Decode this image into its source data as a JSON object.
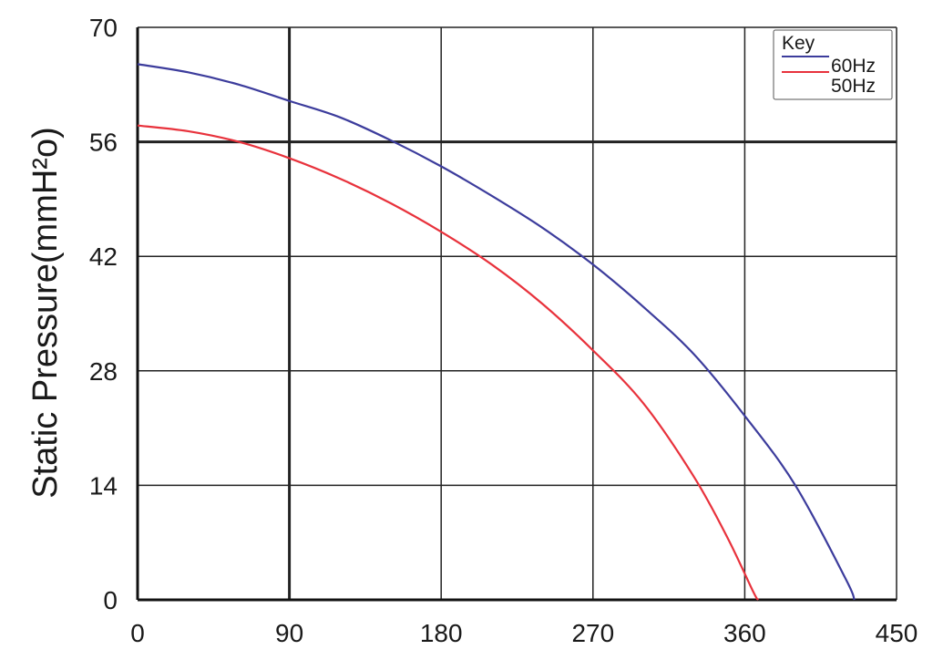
{
  "chart_data": {
    "type": "line",
    "xlabel": "",
    "ylabel": "Static Pressure(mmH²o)",
    "xlim": [
      0,
      450
    ],
    "ylim": [
      0,
      70
    ],
    "x_ticks": [
      "0",
      "90",
      "180",
      "270",
      "360",
      "450"
    ],
    "y_ticks": [
      "0",
      "14",
      "28",
      "42",
      "56",
      "70"
    ],
    "grid": true,
    "legend": {
      "title": "Key",
      "placement": "top-right"
    },
    "series": [
      {
        "name": "60Hz",
        "color": "#3c3c9c",
        "x": [
          0,
          30,
          60,
          90,
          120,
          150,
          180,
          210,
          240,
          270,
          300,
          330,
          360,
          390,
          420,
          425
        ],
        "y": [
          65.5,
          64.5,
          63.0,
          61.0,
          59.0,
          56.2,
          53.0,
          49.4,
          45.5,
          41.0,
          35.8,
          30.0,
          22.5,
          14.0,
          2.5,
          0
        ]
      },
      {
        "name": "50Hz",
        "color": "#e8323c",
        "x": [
          0,
          30,
          60,
          90,
          120,
          150,
          180,
          210,
          240,
          270,
          300,
          330,
          350,
          365,
          368
        ],
        "y": [
          58.0,
          57.3,
          56.0,
          54.0,
          51.5,
          48.5,
          45.0,
          41.0,
          36.2,
          30.5,
          24.0,
          15.0,
          7.5,
          1.0,
          0
        ]
      }
    ]
  }
}
